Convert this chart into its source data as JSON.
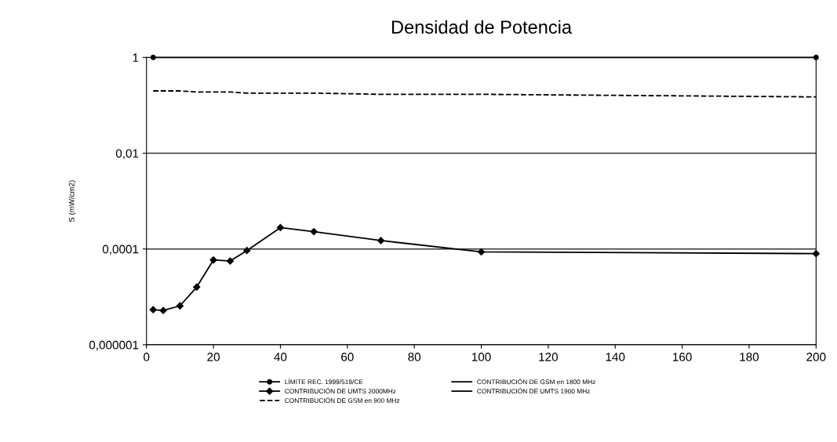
{
  "chart_data": {
    "type": "line",
    "title": "Densidad de Potencia",
    "ylabel": "S (mW/cm2)",
    "x": [
      2,
      5,
      10,
      15,
      20,
      25,
      30,
      40,
      50,
      70,
      100,
      200
    ],
    "xlim": [
      0,
      200
    ],
    "xticks": [
      0,
      20,
      40,
      60,
      80,
      100,
      120,
      140,
      160,
      180,
      200
    ],
    "log": "y",
    "ylim": [
      1e-06,
      1
    ],
    "yticks": [
      {
        "value": 1e-06,
        "label": "0,000001"
      },
      {
        "value": 0.0001,
        "label": "0,0001"
      },
      {
        "value": 0.01,
        "label": "0,01"
      },
      {
        "value": 1,
        "label": "1"
      }
    ],
    "grid": "y",
    "legend": "bottom",
    "series": [
      {
        "name": "LÍMITE REC. 1999/519/CE",
        "color": "#000000",
        "marker": "circle",
        "line_style": "solid",
        "values": [
          1,
          null,
          null,
          null,
          null,
          null,
          null,
          null,
          null,
          null,
          null,
          1
        ]
      },
      {
        "name": "CONTRIBUCIÓN DE UMTS 2000MHz",
        "color": "#000000",
        "marker": "diamond",
        "line_style": "solid",
        "values": [
          5.4e-06,
          5.2e-06,
          6.5e-06,
          1.6e-05,
          5.9e-05,
          5.6e-05,
          9.3e-05,
          0.00028,
          0.00023,
          0.00015,
          8.7e-05,
          8e-05
        ]
      },
      {
        "name": "CONTRIBUCIÓN DE GSM en 900 MHz",
        "color": "#000000",
        "marker": "none",
        "line_style": "dashed",
        "values": [
          0.2,
          0.2,
          0.2,
          0.19,
          0.19,
          0.19,
          0.18,
          0.18,
          0.18,
          0.17,
          0.17,
          0.15
        ]
      },
      {
        "name": "CONTRIBUCIÓN DE GSM en 1800 MHz",
        "color": "#000000",
        "marker": "none",
        "line_style": "solid",
        "values": [
          null,
          null,
          null,
          null,
          null,
          null,
          null,
          null,
          null,
          null,
          null,
          null
        ]
      },
      {
        "name": "CONTRIBUCIÓN DE UMTS 1900 MHz",
        "color": "#000000",
        "marker": "none",
        "line_style": "solid",
        "values": [
          null,
          null,
          null,
          null,
          null,
          null,
          null,
          null,
          null,
          null,
          null,
          null
        ]
      }
    ]
  }
}
